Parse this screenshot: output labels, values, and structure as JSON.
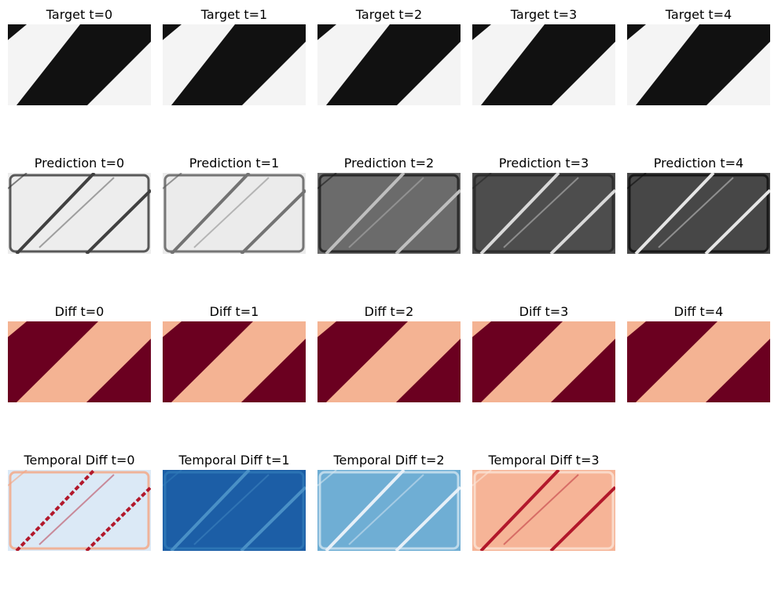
{
  "chart_data": {
    "type": "heatmap",
    "rows": [
      {
        "name": "Target",
        "colormap": "gray",
        "panels": [
          {
            "title": "Target t=0",
            "t": 0,
            "stripe_low": 0.08,
            "stripe_high": 0.95,
            "edge_artifact": 0
          },
          {
            "title": "Target t=1",
            "t": 1,
            "stripe_low": 0.08,
            "stripe_high": 0.95,
            "edge_artifact": 0
          },
          {
            "title": "Target t=2",
            "t": 2,
            "stripe_low": 0.08,
            "stripe_high": 0.95,
            "edge_artifact": 0
          },
          {
            "title": "Target t=3",
            "t": 3,
            "stripe_low": 0.08,
            "stripe_high": 0.95,
            "edge_artifact": 0
          },
          {
            "title": "Target t=4",
            "t": 4,
            "stripe_low": 0.08,
            "stripe_high": 0.95,
            "edge_artifact": 0
          }
        ]
      },
      {
        "name": "Prediction",
        "colormap": "gray",
        "panels": [
          {
            "title": "Prediction t=0",
            "t": 0,
            "background": 0.93,
            "edge_line": 0.2,
            "diagonal_lines": 0.25
          },
          {
            "title": "Prediction t=1",
            "t": 1,
            "background": 0.92,
            "edge_line": 0.35,
            "diagonal_lines": 0.45
          },
          {
            "title": "Prediction t=2",
            "t": 2,
            "background": 0.42,
            "edge_line": 0.1,
            "diagonal_lines": 0.75
          },
          {
            "title": "Prediction t=3",
            "t": 3,
            "background": 0.3,
            "edge_line": 0.15,
            "diagonal_lines": 0.85
          },
          {
            "title": "Prediction t=4",
            "t": 4,
            "background": 0.28,
            "edge_line": 0.05,
            "diagonal_lines": 0.9
          }
        ]
      },
      {
        "name": "Diff",
        "colormap": "RdBu",
        "panels": [
          {
            "title": "Diff t=0",
            "t": 0
          },
          {
            "title": "Diff t=1",
            "t": 1
          },
          {
            "title": "Diff t=2",
            "t": 2
          },
          {
            "title": "Diff t=3",
            "t": 3
          },
          {
            "title": "Diff t=4",
            "t": 4
          }
        ]
      },
      {
        "name": "Temporal Diff",
        "colormap": "RdBu",
        "panels": [
          {
            "title": "Temporal Diff t=0",
            "t": 0,
            "background": "#dbe9f6",
            "edge_line": "#f4a582",
            "diagonal_lines": "#b2182b"
          },
          {
            "title": "Temporal Diff t=1",
            "t": 1,
            "background": "#1c5ea6",
            "edge_line": "#2f79b8",
            "diagonal_lines": "#4a90c6"
          },
          {
            "title": "Temporal Diff t=2",
            "t": 2,
            "background": "#6faed4",
            "edge_line": "#d1e5f0",
            "diagonal_lines": "#e7f0f8"
          },
          {
            "title": "Temporal Diff t=3",
            "t": 3,
            "background": "#f6b497",
            "edge_line": "#fbe3d6",
            "diagonal_lines": "#b2182b"
          }
        ]
      }
    ],
    "colors": {
      "target_dark": "#111111",
      "target_light": "#f4f4f4",
      "diff_dark": "#6b0020",
      "diff_light": "#f4b393"
    }
  }
}
